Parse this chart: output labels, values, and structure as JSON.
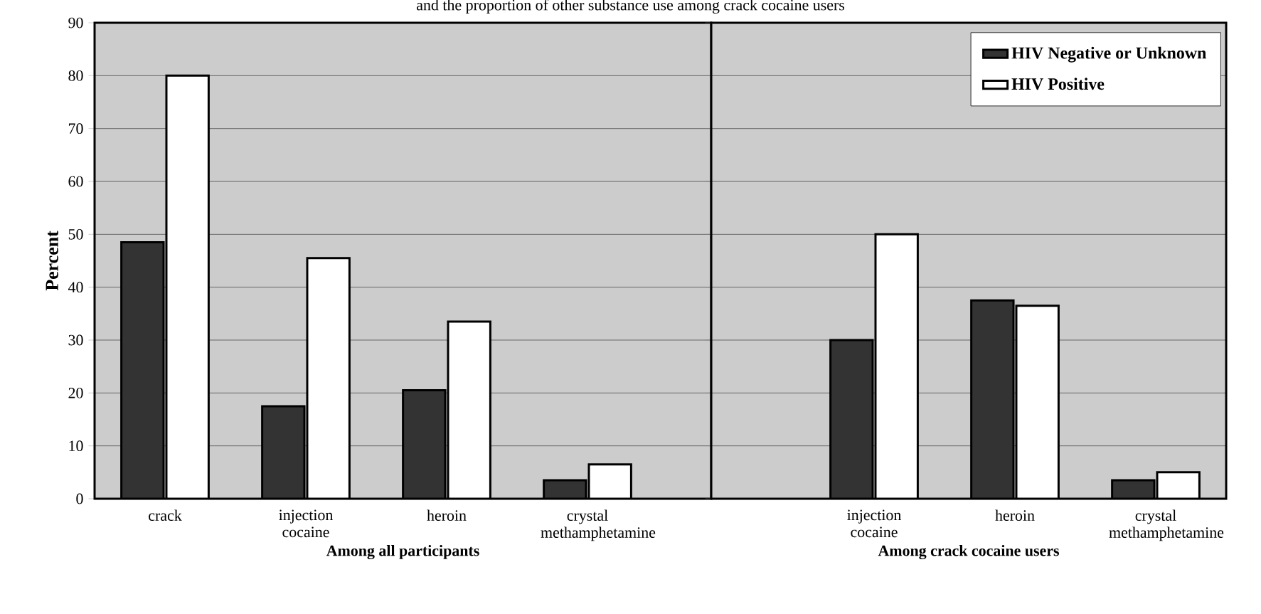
{
  "chart_data": [
    {
      "type": "bar",
      "title": "and the proportion of other substance use among crack cocaine users",
      "xlabel": "Among all participants",
      "ylabel": "Percent",
      "categories": [
        "crack",
        "injection cocaine",
        "heroin",
        "crystal methamphetamine"
      ],
      "series": [
        {
          "color": "#333333",
          "values": [
            48.5,
            17.5,
            20.5,
            3.5
          ]
        },
        {
          "color": "#ffffff",
          "values": [
            80,
            45.5,
            33.5,
            6.5
          ]
        }
      ],
      "ylim": [
        0,
        90
      ],
      "yticks": [
        0,
        10,
        20,
        30,
        40,
        50,
        60,
        70,
        80,
        90
      ],
      "grid": "y"
    },
    {
      "type": "bar",
      "xlabel": "Among crack cocaine users",
      "categories": [
        "injection cocaine",
        "heroin",
        "crystal methamphetamine"
      ],
      "series": [
        {
          "name": "HIV Negative or Unknown",
          "color": "#333333",
          "values": [
            30,
            37.5,
            3.5
          ]
        },
        {
          "name": "HIV Positive",
          "color": "#ffffff",
          "values": [
            50,
            36.5,
            5
          ]
        }
      ],
      "ylim": [
        0,
        90
      ],
      "yticks": [
        0,
        10,
        20,
        30,
        40,
        50,
        60,
        70,
        80,
        90
      ],
      "grid": "y",
      "legend": "top right",
      "tick_labels": "x"
    }
  ]
}
